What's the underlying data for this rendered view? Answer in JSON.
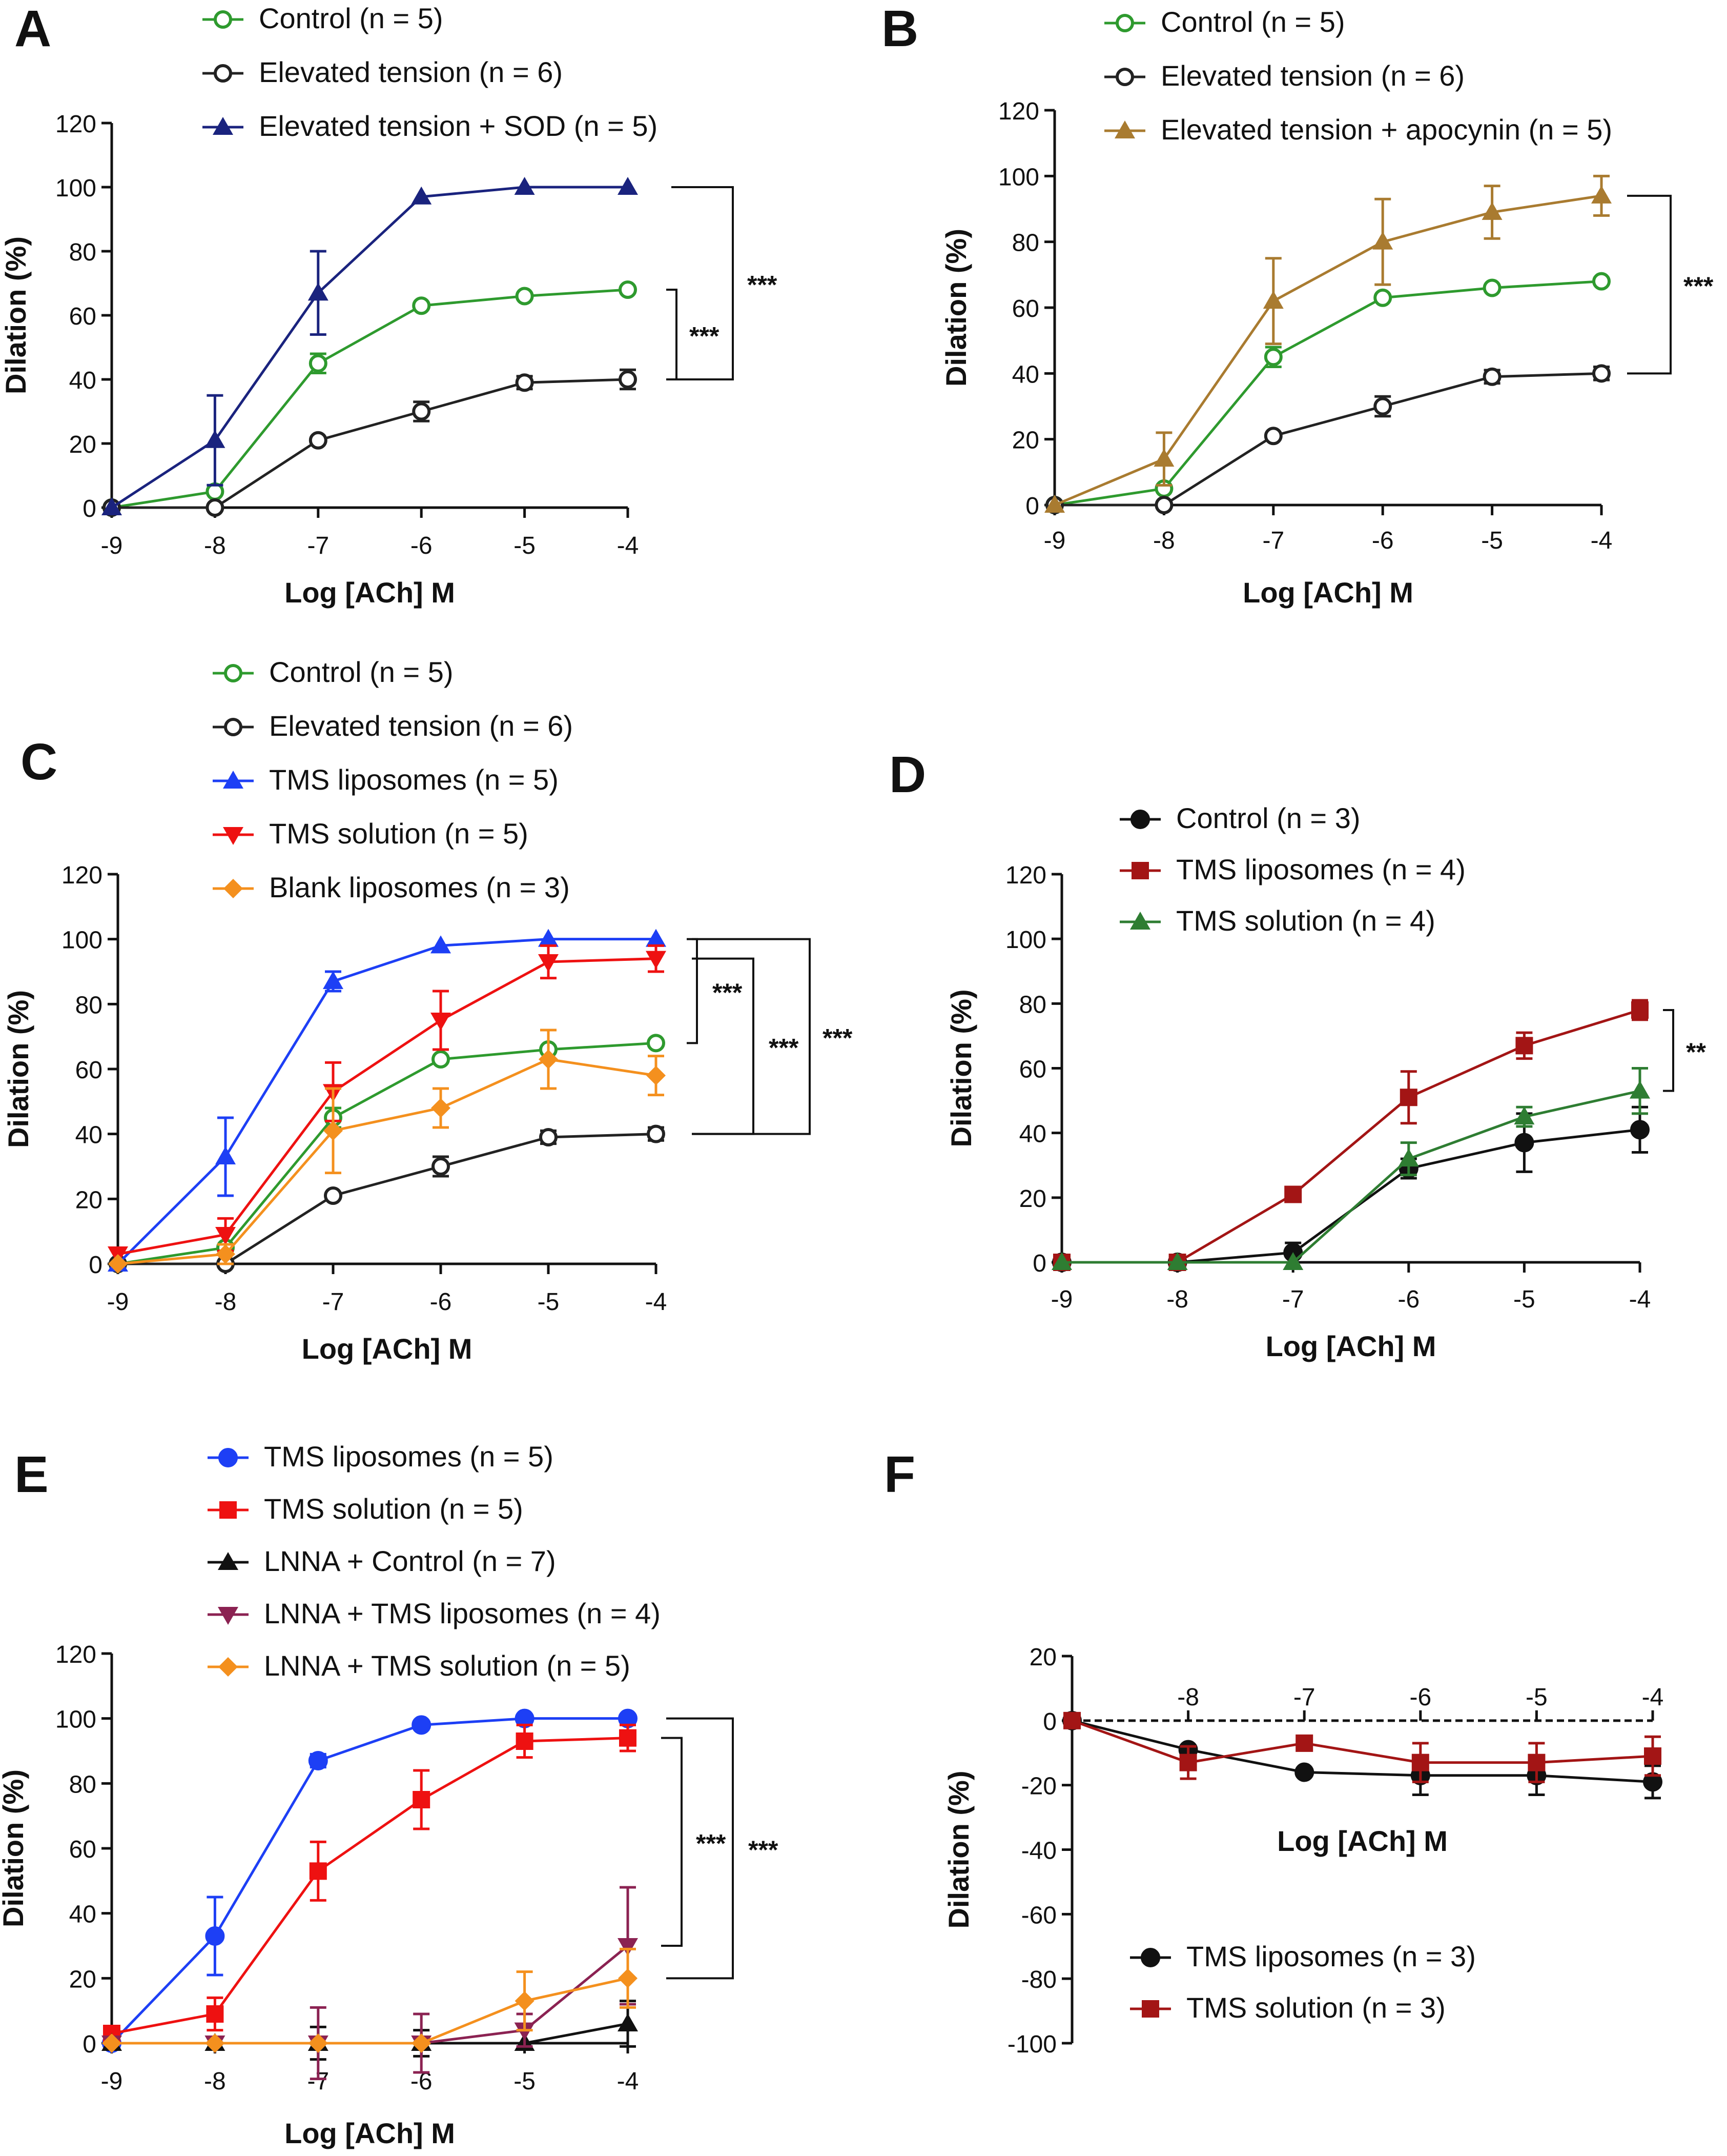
{
  "figure": {
    "shared_x_label": "Log [ACh] M",
    "shared_y_label": "Dilation (%)"
  },
  "chart_data": [
    {
      "panel": "A",
      "type": "line",
      "x": [
        -9,
        -8,
        -7,
        -6,
        -5,
        -4
      ],
      "xticks": [
        "-9",
        "-8",
        "-7",
        "-6",
        "-5",
        "-4"
      ],
      "ylim": [
        0,
        120
      ],
      "yticks": [
        "0",
        "20",
        "40",
        "60",
        "80",
        "100",
        "120"
      ],
      "xlabel": "Log [ACh] M",
      "ylabel": "Dilation (%)",
      "series": [
        {
          "name": "Control (n = 5)",
          "color": "#2e9a2e",
          "marker": "open-circle",
          "values": [
            0,
            5,
            45,
            63,
            66,
            68
          ],
          "err": [
            0,
            0,
            3,
            0,
            0,
            0
          ]
        },
        {
          "name": "Elevated tension (n = 6)",
          "color": "#222222",
          "marker": "open-circle",
          "values": [
            0,
            0,
            21,
            30,
            39,
            40
          ],
          "err": [
            0,
            0,
            0,
            3,
            2,
            3
          ]
        },
        {
          "name": "Elevated tension + SOD (n = 5)",
          "color": "#1a237e",
          "marker": "triangle",
          "values": [
            0,
            21,
            67,
            97,
            100,
            100
          ],
          "err": [
            0,
            14,
            13,
            0,
            0,
            0
          ]
        }
      ],
      "significance": [
        {
          "label": "***",
          "from": 68,
          "to": 40
        },
        {
          "label": "***",
          "from": 100,
          "to": 40
        }
      ]
    },
    {
      "panel": "B",
      "type": "line",
      "x": [
        -9,
        -8,
        -7,
        -6,
        -5,
        -4
      ],
      "xticks": [
        "-9",
        "-8",
        "-7",
        "-6",
        "-5",
        "-4"
      ],
      "ylim": [
        0,
        120
      ],
      "yticks": [
        "0",
        "20",
        "40",
        "60",
        "80",
        "100",
        "120"
      ],
      "xlabel": "Log [ACh] M",
      "ylabel": "Dilation (%)",
      "series": [
        {
          "name": "Control (n = 5)",
          "color": "#2e9a2e",
          "marker": "open-circle",
          "values": [
            0,
            5,
            45,
            63,
            66,
            68
          ],
          "err": [
            0,
            0,
            3,
            0,
            0,
            0
          ]
        },
        {
          "name": "Elevated tension (n = 6)",
          "color": "#222222",
          "marker": "open-circle",
          "values": [
            0,
            0,
            21,
            30,
            39,
            40
          ],
          "err": [
            0,
            0,
            0,
            3,
            2,
            2
          ]
        },
        {
          "name": "Elevated tension + apocynin (n = 5)",
          "color": "#a97b30",
          "marker": "triangle",
          "values": [
            0,
            14,
            62,
            80,
            89,
            94
          ],
          "err": [
            0,
            8,
            13,
            13,
            8,
            6
          ]
        }
      ],
      "significance": [
        {
          "label": "***",
          "from": 94,
          "to": 40
        }
      ]
    },
    {
      "panel": "C",
      "type": "line",
      "x": [
        -9,
        -8,
        -7,
        -6,
        -5,
        -4
      ],
      "xticks": [
        "-9",
        "-8",
        "-7",
        "-6",
        "-5",
        "-4"
      ],
      "ylim": [
        0,
        120
      ],
      "yticks": [
        "0",
        "20",
        "40",
        "60",
        "80",
        "100",
        "120"
      ],
      "xlabel": "Log [ACh] M",
      "ylabel": "Dilation (%)",
      "series": [
        {
          "name": "Control (n = 5)",
          "color": "#2e9a2e",
          "marker": "open-circle",
          "values": [
            0,
            5,
            45,
            63,
            66,
            68
          ],
          "err": [
            0,
            0,
            3,
            0,
            0,
            0
          ]
        },
        {
          "name": "Elevated tension (n = 6)",
          "color": "#222222",
          "marker": "open-circle",
          "values": [
            0,
            0,
            21,
            30,
            39,
            40
          ],
          "err": [
            0,
            0,
            0,
            3,
            2,
            2
          ]
        },
        {
          "name": "TMS liposomes (n = 5)",
          "color": "#1d3ff5",
          "marker": "triangle",
          "values": [
            0,
            33,
            87,
            98,
            100,
            100
          ],
          "err": [
            0,
            12,
            3,
            0,
            0,
            0
          ]
        },
        {
          "name": "TMS solution (n = 5)",
          "color": "#ee1111",
          "marker": "triangle-down",
          "values": [
            3,
            9,
            53,
            75,
            93,
            94
          ],
          "err": [
            0,
            5,
            9,
            9,
            5,
            4
          ]
        },
        {
          "name": "Blank liposomes (n = 3)",
          "color": "#f4901e",
          "marker": "diamond",
          "values": [
            0,
            3,
            41,
            48,
            63,
            58
          ],
          "err": [
            0,
            3,
            13,
            6,
            9,
            6
          ]
        }
      ],
      "significance": [
        {
          "label": "***",
          "from": 100,
          "to": 68
        },
        {
          "label": "***",
          "from": 94,
          "to": 40
        },
        {
          "label": "***",
          "from": 100,
          "to": 40
        }
      ]
    },
    {
      "panel": "D",
      "type": "line",
      "x": [
        -9,
        -8,
        -7,
        -6,
        -5,
        -4
      ],
      "xticks": [
        "-9",
        "-8",
        "-7",
        "-6",
        "-5",
        "-4"
      ],
      "ylim": [
        0,
        120
      ],
      "yticks": [
        "0",
        "20",
        "40",
        "60",
        "80",
        "100",
        "120"
      ],
      "xlabel": "Log [ACh] M",
      "ylabel": "Dilation (%)",
      "series": [
        {
          "name": "Control (n = 3)",
          "color": "#111111",
          "marker": "circle",
          "values": [
            0,
            0,
            3,
            29,
            37,
            41
          ],
          "err": [
            0,
            0,
            3,
            3,
            9,
            7
          ]
        },
        {
          "name": "TMS liposomes (n = 4)",
          "color": "#a31515",
          "marker": "square",
          "values": [
            0,
            0,
            21,
            51,
            67,
            78
          ],
          "err": [
            0,
            0,
            0,
            8,
            4,
            3
          ]
        },
        {
          "name": "TMS solution (n = 4)",
          "color": "#2e7d32",
          "marker": "triangle",
          "values": [
            0,
            0,
            0,
            32,
            45,
            53
          ],
          "err": [
            0,
            0,
            0,
            5,
            3,
            7
          ]
        }
      ],
      "significance": [
        {
          "label": "**",
          "from": 78,
          "to": 53
        }
      ]
    },
    {
      "panel": "E",
      "type": "line",
      "x": [
        -9,
        -8,
        -7,
        -6,
        -5,
        -4
      ],
      "xticks": [
        "-9",
        "-8",
        "-7",
        "-6",
        "-5",
        "-4"
      ],
      "ylim": [
        0,
        120
      ],
      "yticks": [
        "0",
        "20",
        "40",
        "60",
        "80",
        "100",
        "120"
      ],
      "xlabel": "Log [ACh] M",
      "ylabel": "Dilation (%)",
      "series": [
        {
          "name": "TMS liposomes (n = 5)",
          "color": "#1d3ff5",
          "marker": "circle",
          "values": [
            0,
            33,
            87,
            98,
            100,
            100
          ],
          "err": [
            0,
            12,
            2,
            0,
            0,
            0
          ]
        },
        {
          "name": "TMS solution (n = 5)",
          "color": "#ee1111",
          "marker": "square",
          "values": [
            3,
            9,
            53,
            75,
            93,
            94
          ],
          "err": [
            0,
            5,
            9,
            9,
            5,
            4
          ]
        },
        {
          "name": "LNNA + Control (n = 7)",
          "color": "#111111",
          "marker": "triangle",
          "values": [
            0,
            0,
            0,
            0,
            0,
            6
          ],
          "err": [
            0,
            0,
            5,
            4,
            0,
            7
          ]
        },
        {
          "name": "LNNA + TMS liposomes (n = 4)",
          "color": "#8b2252",
          "marker": "triangle-down",
          "values": [
            0,
            0,
            0,
            0,
            4,
            30
          ],
          "err": [
            0,
            0,
            11,
            9,
            5,
            18
          ]
        },
        {
          "name": "LNNA + TMS solution (n = 5)",
          "color": "#f4901e",
          "marker": "diamond",
          "values": [
            0,
            0,
            0,
            0,
            13,
            20
          ],
          "err": [
            0,
            0,
            0,
            0,
            9,
            9
          ]
        }
      ],
      "significance": [
        {
          "label": "***",
          "from": 94,
          "to": 30
        },
        {
          "label": "***",
          "from": 100,
          "to": 20
        }
      ]
    },
    {
      "panel": "F",
      "type": "line",
      "x": [
        -9,
        -8,
        -7,
        -6,
        -5,
        -4
      ],
      "xticks": [
        "",
        "-8",
        "-7",
        "-6",
        "-5",
        "-4"
      ],
      "ylim": [
        -100,
        20
      ],
      "yticks": [
        "-100",
        "-80",
        "-60",
        "-40",
        "-20",
        "0",
        "20"
      ],
      "xlabel": "Log [ACh] M",
      "ylabel": "Dilation (%)",
      "series": [
        {
          "name": "TMS liposomes (n = 3)",
          "color": "#111111",
          "marker": "circle",
          "values": [
            0,
            -9,
            -16,
            -17,
            -17,
            -19
          ],
          "err": [
            0,
            0,
            0,
            6,
            6,
            5
          ]
        },
        {
          "name": "TMS solution (n = 3)",
          "color": "#a31515",
          "marker": "square",
          "values": [
            0,
            -13,
            -7,
            -13,
            -13,
            -11
          ],
          "err": [
            0,
            5,
            0,
            6,
            6,
            6
          ]
        }
      ],
      "significance": []
    }
  ]
}
